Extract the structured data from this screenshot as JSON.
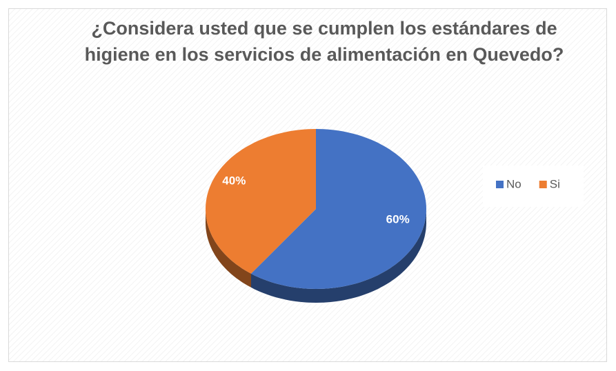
{
  "chart_data": {
    "type": "pie",
    "title": "¿Considera usted que se cumplen los estándares de higiene en los servicios de alimentación en Quevedo?",
    "categories": [
      "No",
      "Si"
    ],
    "values": [
      60,
      40
    ],
    "value_labels": [
      "60%",
      "40%"
    ],
    "colors": [
      "#4472c4",
      "#ed7d31"
    ],
    "legend": "right"
  }
}
